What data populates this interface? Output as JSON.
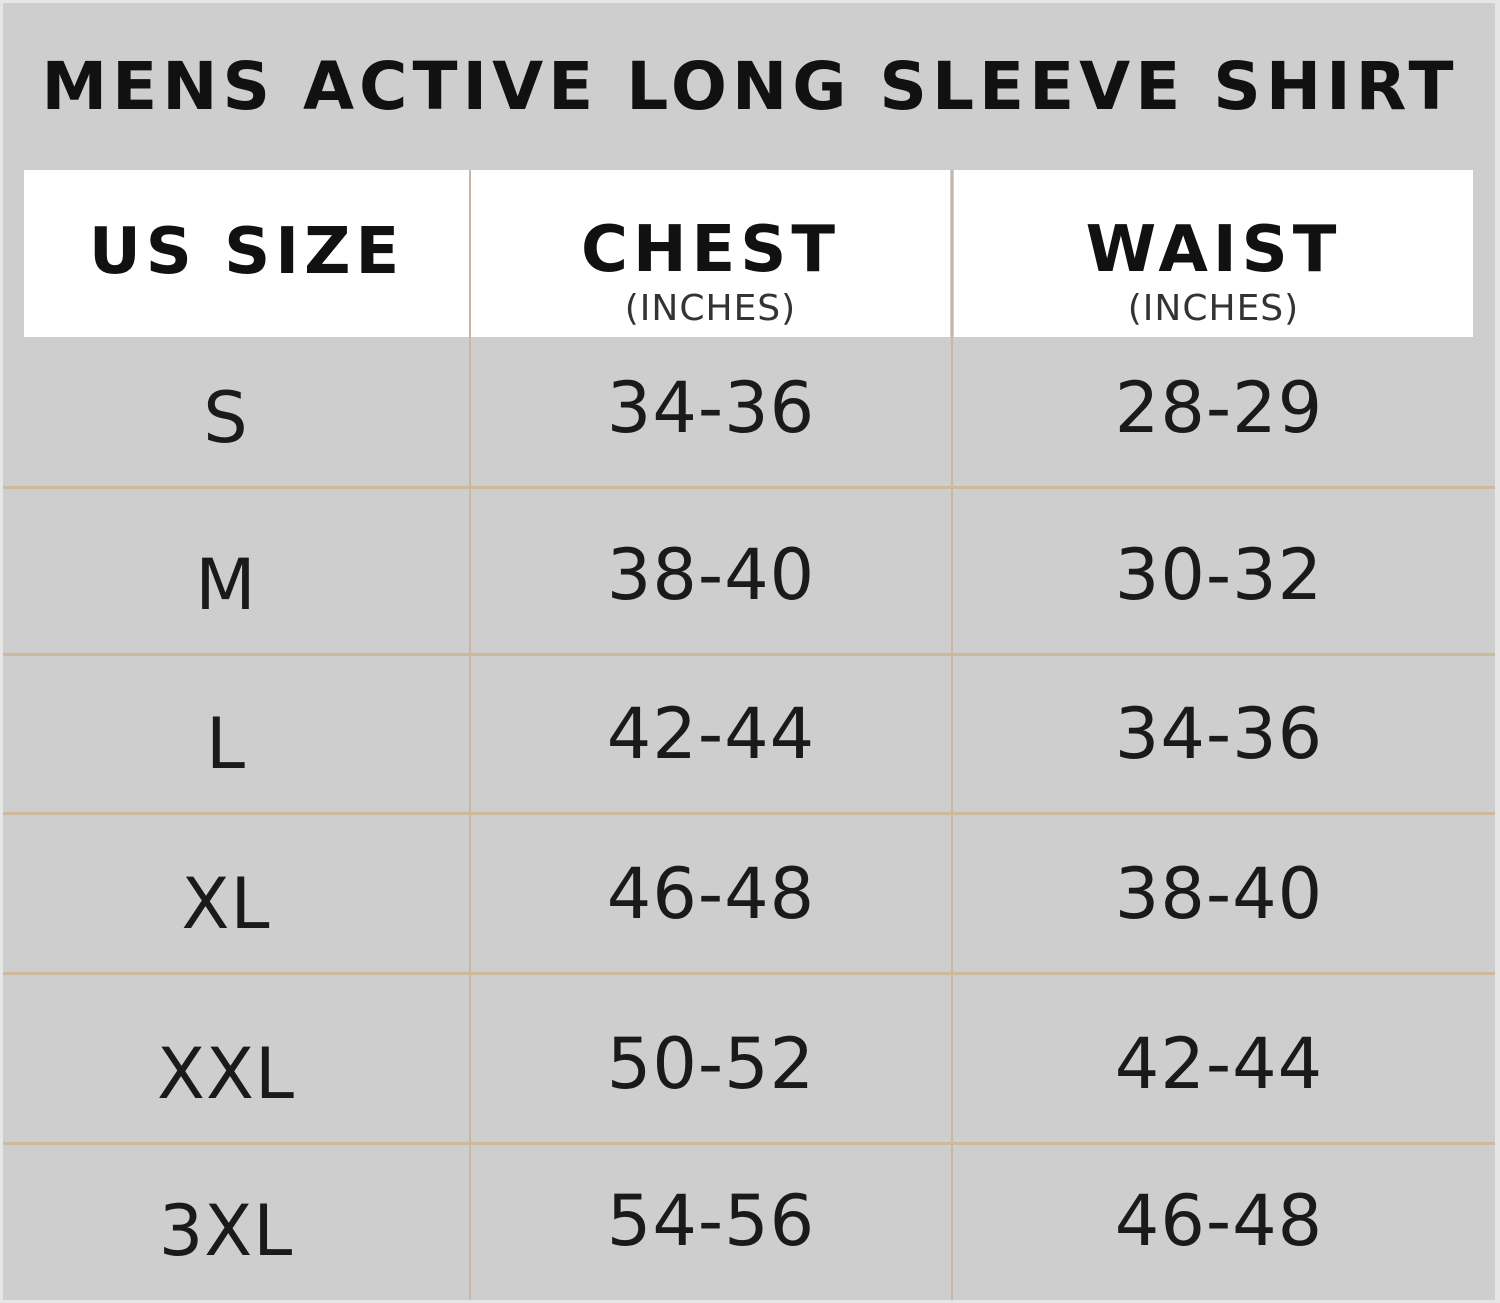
{
  "title": "MENS ACTIVE LONG SLEEVE SHIRT",
  "headers": [
    {
      "label": "US SIZE",
      "unit": ""
    },
    {
      "label": "CHEST",
      "unit": "(INCHES)"
    },
    {
      "label": "WAIST",
      "unit": "(INCHES)"
    }
  ],
  "rows": [
    {
      "size": "S",
      "chest": "34-36",
      "waist": "28-29"
    },
    {
      "size": "M",
      "chest": "38-40",
      "waist": "30-32"
    },
    {
      "size": "L",
      "chest": "42-44",
      "waist": "34-36"
    },
    {
      "size": "XL",
      "chest": "46-48",
      "waist": "38-40"
    },
    {
      "size": "XXL",
      "chest": "50-52",
      "waist": "42-44"
    },
    {
      "size": "3XL",
      "chest": "54-56",
      "waist": "46-48"
    }
  ],
  "colors": {
    "background": "#cecece",
    "header": "#ffffff",
    "divider": "#c9b79f",
    "text": "#111111"
  }
}
